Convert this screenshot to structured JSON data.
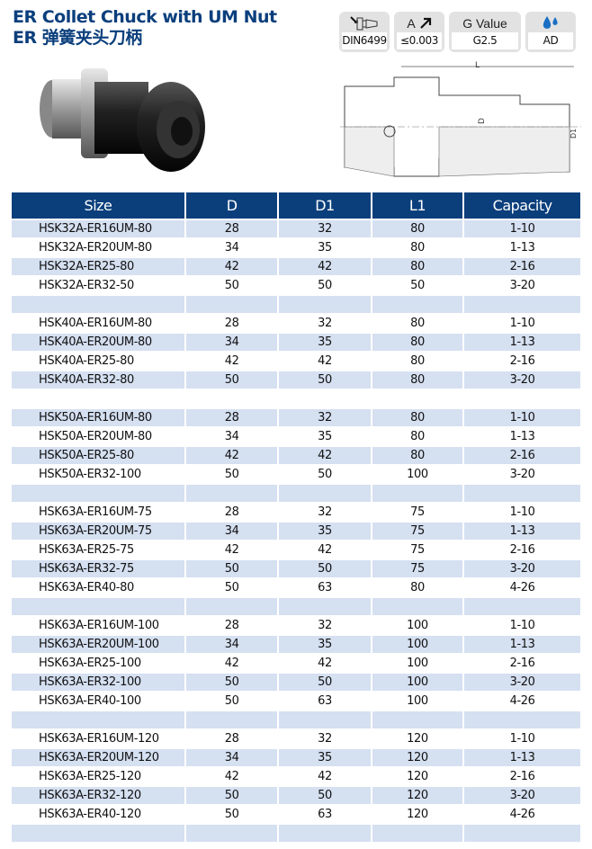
{
  "title_en": "ER Collet Chuck with UM Nut",
  "title_cn": "ER 弹簧夹头刀柄",
  "badges": [
    {
      "icon": "hsk-shank-icon",
      "value": "DIN6499"
    },
    {
      "label": "A",
      "icon": "runout-arrow-icon",
      "value": "≤0.003"
    },
    {
      "label": "G Value",
      "value": "G2.5"
    },
    {
      "icon": "coolant-drops-icon",
      "value": "AD"
    }
  ],
  "drawing_labels": {
    "L": "L",
    "D": "D",
    "D1": "D1"
  },
  "colors": {
    "header": "#0b3f7c",
    "stripe": "#d5e0f1",
    "title": "#0b3f7c"
  },
  "table": {
    "headers": [
      "Size",
      "D",
      "D1",
      "L1",
      "Capacity"
    ],
    "rows": [
      [
        "HSK32A-ER16UM-80",
        "28",
        "32",
        "80",
        "1-10"
      ],
      [
        "HSK32A-ER20UM-80",
        "34",
        "35",
        "80",
        "1-13"
      ],
      [
        "HSK32A-ER25-80",
        "42",
        "42",
        "80",
        "2-16"
      ],
      [
        "HSK32A-ER32-50",
        "50",
        "50",
        "50",
        "3-20"
      ],
      [
        "",
        "",
        "",
        "",
        ""
      ],
      [
        "HSK40A-ER16UM-80",
        "28",
        "32",
        "80",
        "1-10"
      ],
      [
        "HSK40A-ER20UM-80",
        "34",
        "35",
        "80",
        "1-13"
      ],
      [
        "HSK40A-ER25-80",
        "42",
        "42",
        "80",
        "2-16"
      ],
      [
        "HSK40A-ER32-80",
        "50",
        "50",
        "80",
        "3-20"
      ],
      [
        "",
        "",
        "",
        "",
        ""
      ],
      [
        "HSK50A-ER16UM-80",
        "28",
        "32",
        "80",
        "1-10"
      ],
      [
        "HSK50A-ER20UM-80",
        "34",
        "35",
        "80",
        "1-13"
      ],
      [
        "HSK50A-ER25-80",
        "42",
        "42",
        "80",
        "2-16"
      ],
      [
        "HSK50A-ER32-100",
        "50",
        "50",
        "100",
        "3-20"
      ],
      [
        "",
        "",
        "",
        "",
        ""
      ],
      [
        "HSK63A-ER16UM-75",
        "28",
        "32",
        "75",
        "1-10"
      ],
      [
        "HSK63A-ER20UM-75",
        "34",
        "35",
        "75",
        "1-13"
      ],
      [
        "HSK63A-ER25-75",
        "42",
        "42",
        "75",
        "2-16"
      ],
      [
        "HSK63A-ER32-75",
        "50",
        "50",
        "75",
        "3-20"
      ],
      [
        "HSK63A-ER40-80",
        "50",
        "63",
        "80",
        "4-26"
      ],
      [
        "",
        "",
        "",
        "",
        ""
      ],
      [
        "HSK63A-ER16UM-100",
        "28",
        "32",
        "100",
        "1-10"
      ],
      [
        "HSK63A-ER20UM-100",
        "34",
        "35",
        "100",
        "1-13"
      ],
      [
        "HSK63A-ER25-100",
        "42",
        "42",
        "100",
        "2-16"
      ],
      [
        "HSK63A-ER32-100",
        "50",
        "50",
        "100",
        "3-20"
      ],
      [
        "HSK63A-ER40-100",
        "50",
        "63",
        "100",
        "4-26"
      ],
      [
        "",
        "",
        "",
        "",
        ""
      ],
      [
        "HSK63A-ER16UM-120",
        "28",
        "32",
        "120",
        "1-10"
      ],
      [
        "HSK63A-ER20UM-120",
        "34",
        "35",
        "120",
        "1-13"
      ],
      [
        "HSK63A-ER25-120",
        "42",
        "42",
        "120",
        "2-16"
      ],
      [
        "HSK63A-ER32-120",
        "50",
        "50",
        "120",
        "3-20"
      ],
      [
        "HSK63A-ER40-120",
        "50",
        "63",
        "120",
        "4-26"
      ],
      [
        "",
        "",
        "",
        "",
        ""
      ]
    ]
  }
}
